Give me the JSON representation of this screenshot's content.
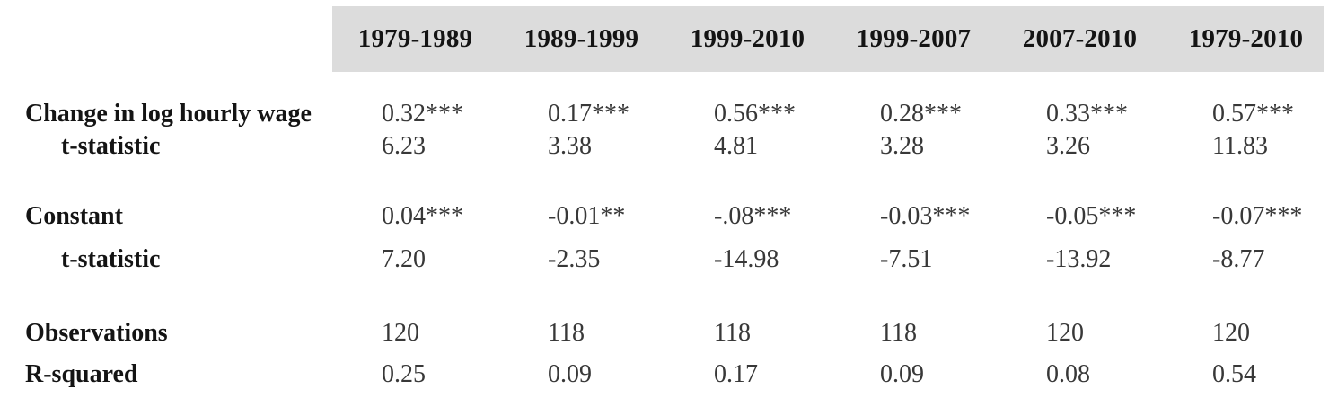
{
  "colors": {
    "header_band": "#dcdcdc",
    "label_text": "#141414",
    "value_text": "#383838",
    "page_bg": "#ffffff"
  },
  "chart_data": {
    "type": "table",
    "title": "",
    "columns": [
      "1979-1989",
      "1989-1999",
      "1999-2010",
      "1999-2007",
      "2007-2010",
      "1979-2010"
    ],
    "rows": [
      {
        "label": "Change in log hourly wage",
        "indent": false,
        "values": [
          "0.32***",
          "0.17***",
          "0.56***",
          "0.28***",
          "0.33***",
          "0.57***"
        ]
      },
      {
        "label": "t-statistic",
        "indent": true,
        "values": [
          "6.23",
          "3.38",
          "4.81",
          "3.28",
          "3.26",
          "11.83"
        ]
      },
      {
        "label": "Constant",
        "indent": false,
        "values": [
          "0.04***",
          "-0.01**",
          "-.08***",
          "-0.03***",
          "-0.05***",
          "-0.07***"
        ]
      },
      {
        "label": "t-statistic",
        "indent": true,
        "values": [
          "7.20",
          "-2.35",
          "-14.98",
          "-7.51",
          "-13.92",
          "-8.77"
        ]
      },
      {
        "label": "Observations",
        "indent": false,
        "values": [
          "120",
          "118",
          "118",
          "118",
          "120",
          "120"
        ]
      },
      {
        "label": "R-squared",
        "indent": false,
        "values": [
          "0.25",
          "0.09",
          "0.17",
          "0.09",
          "0.08",
          "0.54"
        ]
      }
    ]
  }
}
